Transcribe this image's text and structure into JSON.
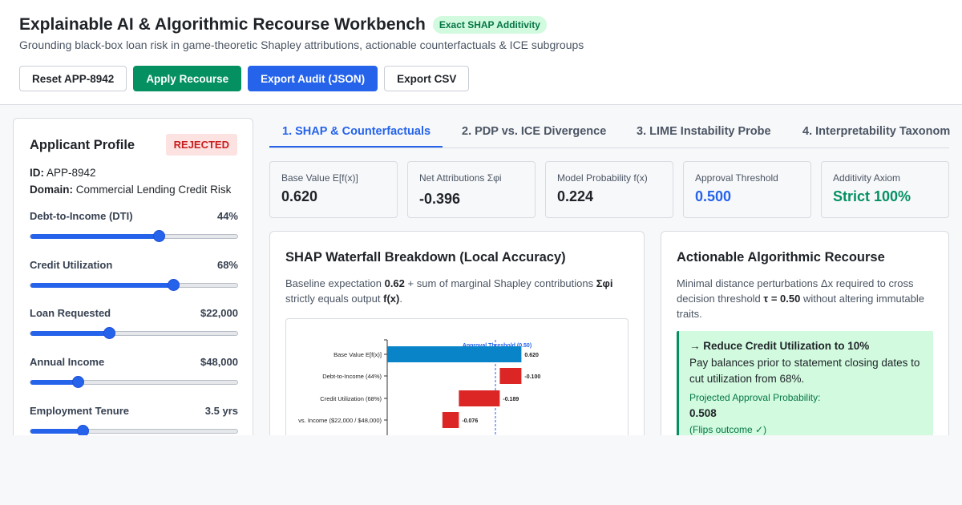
{
  "header": {
    "title": "Explainable AI & Algorithmic Recourse Workbench",
    "badge": "Exact SHAP Additivity",
    "subtitle": "Grounding black-box loan risk in game-theoretic Shapley attributions, actionable counterfactuals & ICE subgroups"
  },
  "toolbar": {
    "reset_label": "Reset APP-8942",
    "apply_label": "Apply Recourse",
    "export_json_label": "Export Audit (JSON)",
    "export_csv_label": "Export CSV"
  },
  "profile": {
    "title": "Applicant Profile",
    "status": "REJECTED",
    "id_label": "ID:",
    "id_value": "APP-8942",
    "domain_label": "Domain:",
    "domain_value": "Commercial Lending Credit Risk",
    "sliders": [
      {
        "label": "Debt-to-Income (DTI)",
        "value": "44%",
        "fraction": 0.62
      },
      {
        "label": "Credit Utilization",
        "value": "68%",
        "fraction": 0.69
      },
      {
        "label": "Loan Requested",
        "value": "$22,000",
        "fraction": 0.38
      },
      {
        "label": "Annual Income",
        "value": "$48,000",
        "fraction": 0.23
      },
      {
        "label": "Employment Tenure",
        "value": "3.5 yrs",
        "fraction": 0.25
      }
    ]
  },
  "tabs": [
    {
      "label": "1. SHAP & Counterfactuals",
      "active": true
    },
    {
      "label": "2. PDP vs. ICE Divergence",
      "active": false
    },
    {
      "label": "3. LIME Instability Probe",
      "active": false
    },
    {
      "label": "4. Interpretability Taxonom",
      "active": false
    }
  ],
  "stats": [
    {
      "label": "Base Value E[f(x)]",
      "value": "0.620"
    },
    {
      "label": "Net Attributions Σφi",
      "value": "-0.396"
    },
    {
      "label": "Model Probability f(x)",
      "value": "0.224"
    },
    {
      "label": "Approval Threshold",
      "value": "0.500"
    },
    {
      "label": "Additivity Axiom",
      "value": "Strict 100%"
    }
  ],
  "waterfall_card": {
    "title": "SHAP Waterfall Breakdown (Local Accuracy)",
    "text_1": "Baseline expectation ",
    "text_baseline": "0.62",
    "text_2": " + sum of marginal Shapley contributions ",
    "text_sum": "Σφi",
    "text_3": " strictly equals output ",
    "text_fx": "f(x)",
    "text_4": "."
  },
  "chart_data": {
    "type": "bar",
    "orientation": "horizontal-waterfall",
    "categories": [
      "Base Value E[f(x)]",
      "Debt-to-Income (44%)",
      "Credit Utilization (68%)",
      "vs. Income ($22,000 / $48,000)"
    ],
    "values": [
      0.62,
      -0.1,
      -0.189,
      -0.076
    ],
    "labels": [
      "0.620",
      "-0.100",
      "-0.189",
      "-0.076"
    ],
    "threshold": 0.5,
    "threshold_label": "Approval Threshold (0.50)",
    "colors": {
      "base": "#0a84c8",
      "negative": "#dc2626",
      "threshold": "#2563eb"
    }
  },
  "recourse_card": {
    "title": "Actionable Algorithmic Recourse",
    "text_1": "Minimal distance perturbations Δx required to cross decision threshold ",
    "text_tau": "τ = 0.50",
    "text_2": " without altering immutable traits.",
    "action_title": "→ Reduce Credit Utilization to 10%",
    "action_desc": "Pay balances prior to statement closing dates to cut utilization from 68%.",
    "prob_label": "Projected Approval Probability:",
    "prob_value": "0.508",
    "flip_note": "(Flips outcome ✓)"
  }
}
